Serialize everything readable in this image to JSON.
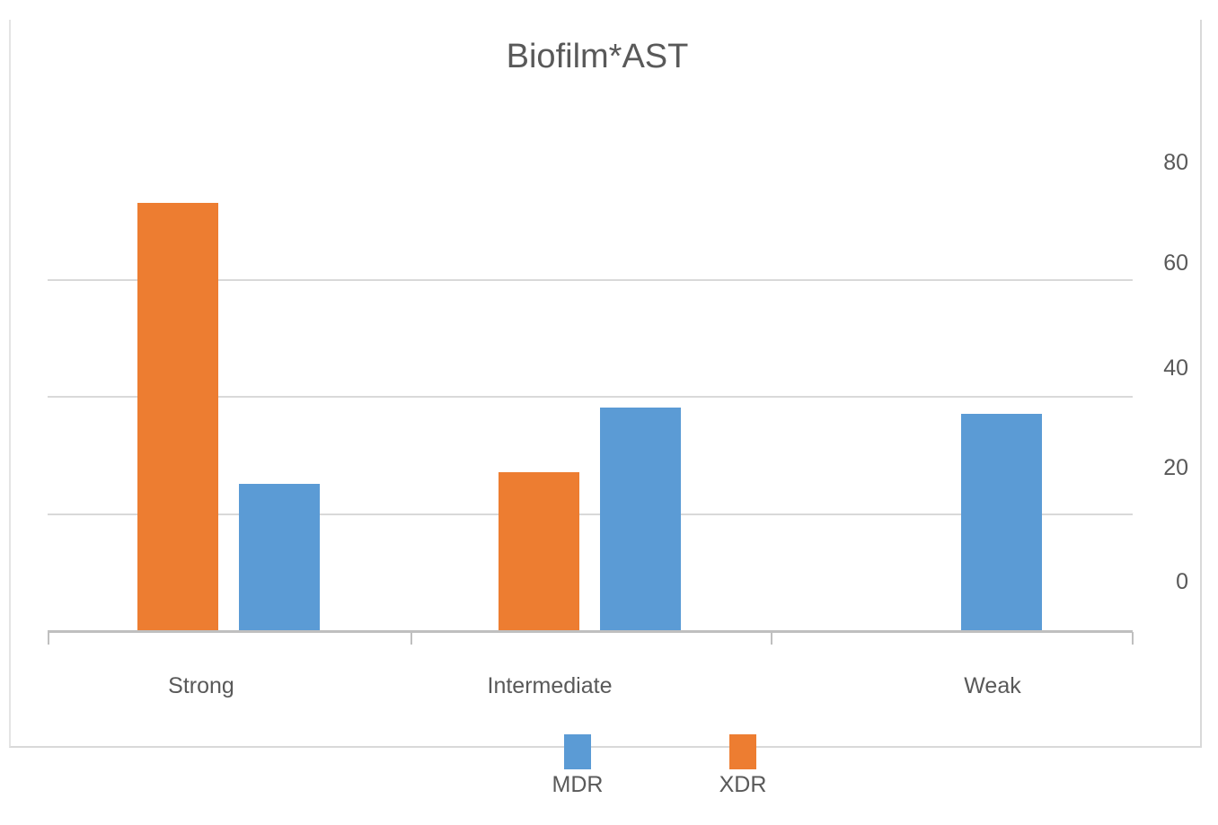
{
  "title": "Biofilm*AST",
  "chart_data": {
    "type": "bar",
    "title": "Biofilm*AST",
    "categories": [
      "Strong",
      "Intermediate",
      "Weak"
    ],
    "series": [
      {
        "name": "XDR",
        "color": "#ED7D31",
        "values": [
          73,
          27,
          0
        ]
      },
      {
        "name": "MDR",
        "color": "#5B9BD5",
        "values": [
          25,
          38,
          37
        ]
      }
    ],
    "y_ticks": [
      80,
      60,
      40,
      20,
      0
    ],
    "ylim": [
      0,
      80
    ],
    "value_axis_side": "right",
    "grid": true,
    "gridline_values": [
      60,
      40,
      20
    ],
    "legend_position": "bottom",
    "legend_order": [
      "MDR",
      "XDR"
    ],
    "bar_order_in_group": [
      "XDR",
      "MDR"
    ]
  },
  "legend": {
    "items": [
      {
        "label": "MDR",
        "color": "#5B9BD5"
      },
      {
        "label": "XDR",
        "color": "#ED7D31"
      }
    ]
  },
  "colors": {
    "mdr_blue": "#5B9BD5",
    "xdr_orange": "#ED7D31",
    "gridline": "#D9D9D9",
    "axis_line": "#BFBFBF",
    "text": "#595959",
    "frame_border": "#D9D9D9",
    "background": "#FFFFFF"
  }
}
